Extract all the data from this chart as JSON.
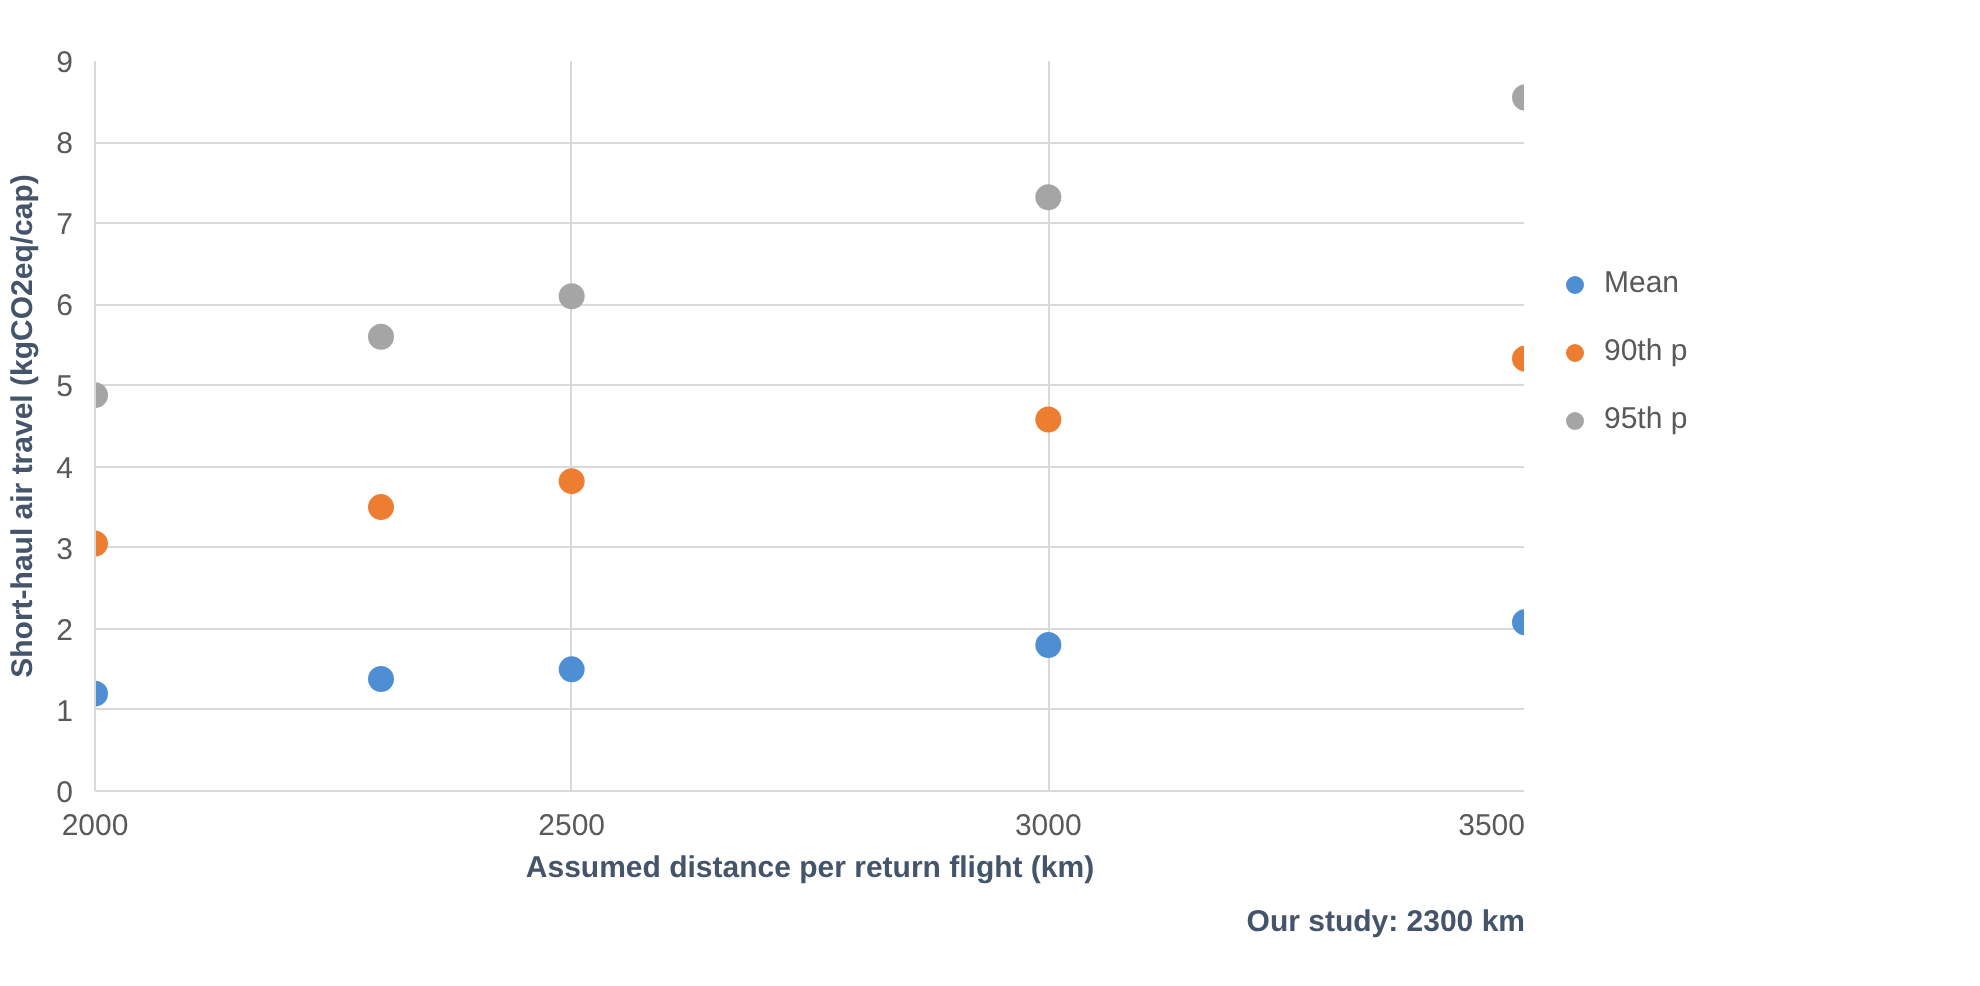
{
  "chart_data": {
    "type": "scatter",
    "xlabel": "Assumed distance per return flight (km)",
    "ylabel": "Short-haul air travel (kgCO2eq/cap)",
    "annotations": [
      "Our study: 2300 km"
    ],
    "x": [
      2000,
      2300,
      2500,
      3000,
      3500
    ],
    "series": [
      {
        "name": "Mean",
        "color": "#4e8fd3",
        "values": [
          1.2,
          1.38,
          1.5,
          1.8,
          2.08
        ]
      },
      {
        "name": "90th p",
        "color": "#ed7d31",
        "values": [
          3.05,
          3.5,
          3.82,
          4.58,
          5.33
        ]
      },
      {
        "name": "95th p",
        "color": "#a5a5a5",
        "values": [
          4.88,
          5.6,
          6.1,
          7.32,
          8.55
        ]
      }
    ],
    "xlim": [
      2000,
      3500
    ],
    "xticks": [
      2000,
      2500,
      3000,
      3500
    ],
    "ylim": [
      0,
      9
    ],
    "yticks": [
      0,
      1,
      2,
      3,
      4,
      5,
      6,
      7,
      8,
      9
    ],
    "grid": true,
    "legend": "right",
    "marker": "circle"
  }
}
